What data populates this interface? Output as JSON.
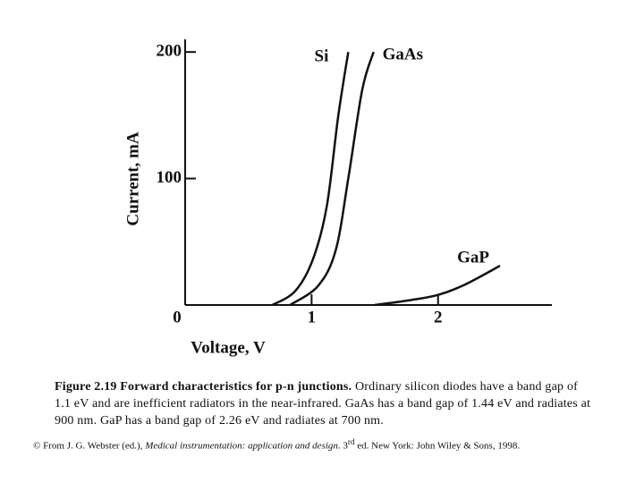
{
  "chart_data": {
    "type": "line",
    "xlabel": "Voltage, V",
    "ylabel": "Current, mA",
    "xlim": [
      0,
      2.9
    ],
    "ylim": [
      0,
      210
    ],
    "xticks": [
      0,
      1,
      2
    ],
    "yticks": [
      100,
      200
    ],
    "series": [
      {
        "name": "Si",
        "color": "#111111",
        "x": [
          0.69,
          0.87,
          1.01,
          1.12,
          1.21,
          1.29
        ],
        "values": [
          0,
          11,
          36,
          78,
          149,
          200
        ]
      },
      {
        "name": "GaAs",
        "color": "#111111",
        "x": [
          0.83,
          1.05,
          1.19,
          1.29,
          1.4,
          1.49
        ],
        "values": [
          0,
          15,
          43,
          100,
          170,
          200
        ]
      },
      {
        "name": "GaP",
        "color": "#111111",
        "x": [
          1.5,
          1.79,
          2.0,
          2.21,
          2.49
        ],
        "values": [
          0,
          4,
          8,
          16,
          31
        ]
      }
    ]
  },
  "caption": {
    "heading": "Figure 2.19 Forward characteristics for p-n junctions.",
    "text": "Ordinary silicon diodes have a band gap of 1.1 eV and are inefficient radiators in the near-infrared. GaAs has a band gap of 1.44 eV and radiates at 900 nm. GaP has a band gap of 2.26 eV and radiates at 700 nm."
  },
  "citation": {
    "prefix": "© From J. G. Webster (ed.), ",
    "title": "Medical instrumentation: application and design",
    "middle": ". 3",
    "sup": "rd",
    "suffix": " ed. New York: John Wiley & Sons, 1998."
  }
}
